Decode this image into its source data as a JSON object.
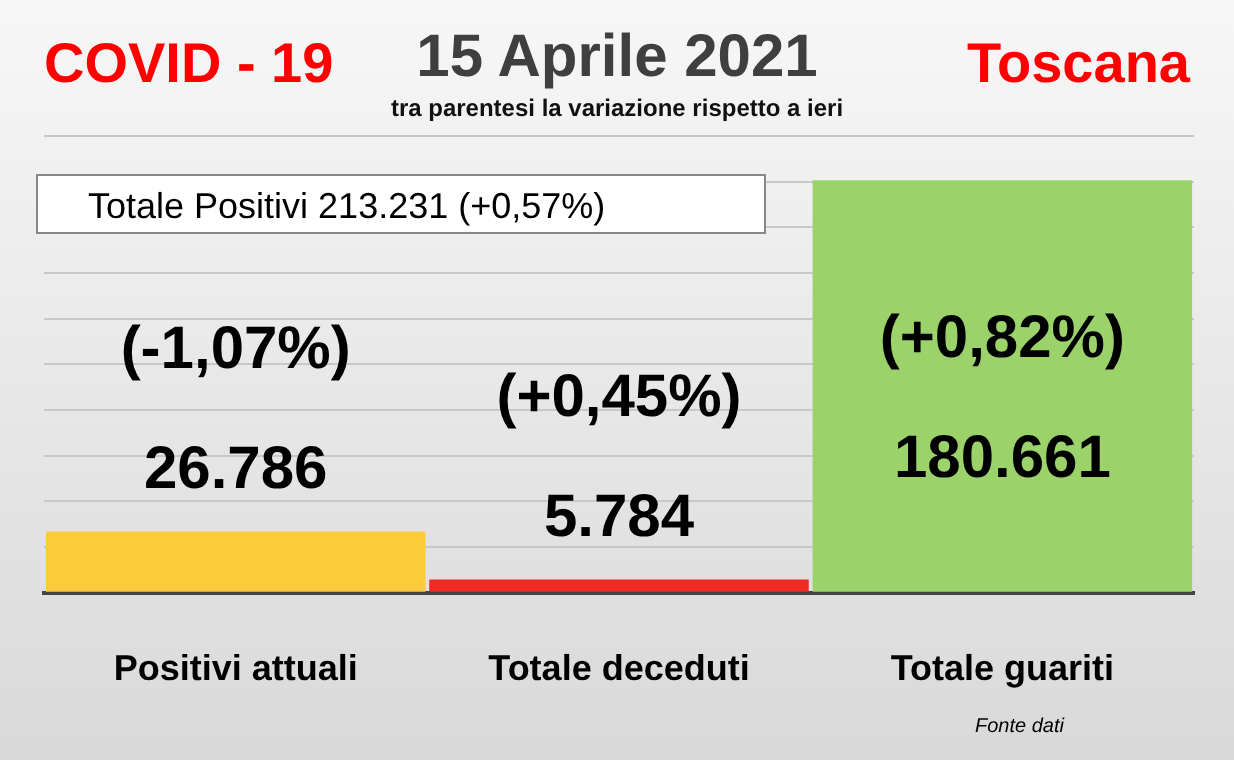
{
  "chart_data": {
    "type": "bar",
    "title": "15 Aprile 2021",
    "subtitle": "tra parentesi la variazione rispetto a ieri",
    "categories": [
      "Positivi attuali",
      "Totale deceduti",
      "Totale guariti"
    ],
    "values": [
      26786,
      5784,
      180661
    ],
    "colors": [
      "#fbcb3c",
      "#f02a24",
      "#9bd36a"
    ],
    "value_labels": [
      "26.786",
      "5.784",
      "180.661"
    ],
    "annotations": [
      "COVID - 19",
      "Toscana",
      "Totale Positivi    213.231 (+0,57%)",
      "(-1,07%)",
      "(+0,45%)",
      "(+0,82%)",
      "Fonte dati"
    ],
    "grid": "y",
    "tick_labels": "x",
    "legend": false
  }
}
